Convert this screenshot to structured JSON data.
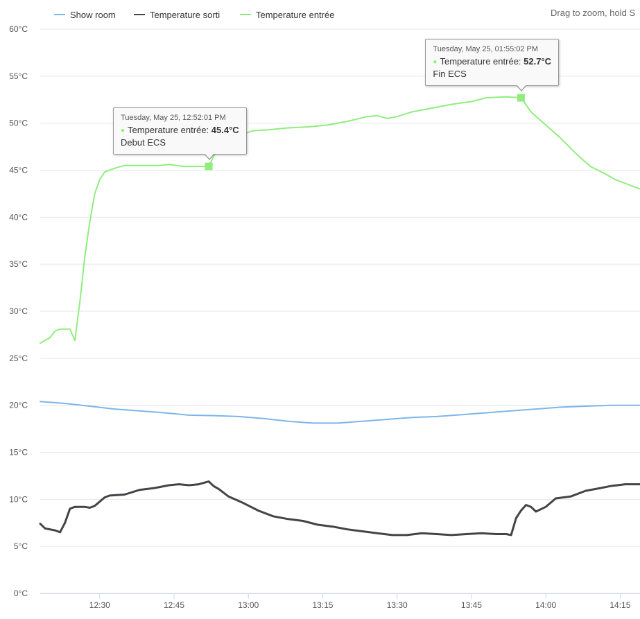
{
  "zoom_hint": "Drag to zoom, hold S",
  "chart_data": {
    "type": "line",
    "x_unit": "time",
    "xlim": [
      "12:18",
      "14:19"
    ],
    "ylim": [
      0,
      60
    ],
    "y_ticks": [
      "0°C",
      "5°C",
      "10°C",
      "15°C",
      "20°C",
      "25°C",
      "30°C",
      "35°C",
      "40°C",
      "45°C",
      "50°C",
      "55°C",
      "60°C"
    ],
    "x_ticks": [
      "12:30",
      "12:45",
      "13:00",
      "13:15",
      "13:30",
      "13:45",
      "14:00",
      "14:15"
    ],
    "grid": true,
    "legend_position": "top-left",
    "series": [
      {
        "name": "Show room",
        "color": "#7cb5ec",
        "points": [
          [
            "12:18",
            20.4
          ],
          [
            "12:23",
            20.2
          ],
          [
            "12:28",
            19.9
          ],
          [
            "12:33",
            19.6
          ],
          [
            "12:38",
            19.4
          ],
          [
            "12:43",
            19.2
          ],
          [
            "12:48",
            18.95
          ],
          [
            "12:53",
            18.9
          ],
          [
            "12:58",
            18.8
          ],
          [
            "13:03",
            18.6
          ],
          [
            "13:08",
            18.3
          ],
          [
            "13:13",
            18.1
          ],
          [
            "13:18",
            18.1
          ],
          [
            "13:23",
            18.3
          ],
          [
            "13:28",
            18.5
          ],
          [
            "13:33",
            18.7
          ],
          [
            "13:38",
            18.8
          ],
          [
            "13:43",
            19.0
          ],
          [
            "13:48",
            19.2
          ],
          [
            "13:53",
            19.4
          ],
          [
            "13:58",
            19.6
          ],
          [
            "14:03",
            19.8
          ],
          [
            "14:08",
            19.9
          ],
          [
            "14:13",
            20.0
          ],
          [
            "14:19",
            20.0
          ]
        ]
      },
      {
        "name": "Temperature sorti",
        "color": "#434348",
        "points": [
          [
            "12:18",
            7.4
          ],
          [
            "12:19",
            6.9
          ],
          [
            "12:21",
            6.7
          ],
          [
            "12:22",
            6.5
          ],
          [
            "12:23",
            7.5
          ],
          [
            "12:24",
            9.0
          ],
          [
            "12:25",
            9.2
          ],
          [
            "12:27",
            9.2
          ],
          [
            "12:28",
            9.1
          ],
          [
            "12:29",
            9.3
          ],
          [
            "12:31",
            10.2
          ],
          [
            "12:32",
            10.4
          ],
          [
            "12:35",
            10.5
          ],
          [
            "12:38",
            11.0
          ],
          [
            "12:41",
            11.2
          ],
          [
            "12:44",
            11.5
          ],
          [
            "12:46",
            11.6
          ],
          [
            "12:48",
            11.5
          ],
          [
            "12:50",
            11.6
          ],
          [
            "12:52",
            11.9
          ],
          [
            "12:53",
            11.4
          ],
          [
            "12:54",
            11.1
          ],
          [
            "12:56",
            10.3
          ],
          [
            "12:59",
            9.6
          ],
          [
            "13:02",
            8.8
          ],
          [
            "13:05",
            8.2
          ],
          [
            "13:08",
            7.9
          ],
          [
            "13:11",
            7.7
          ],
          [
            "13:14",
            7.3
          ],
          [
            "13:17",
            7.1
          ],
          [
            "13:20",
            6.8
          ],
          [
            "13:23",
            6.6
          ],
          [
            "13:26",
            6.4
          ],
          [
            "13:29",
            6.2
          ],
          [
            "13:32",
            6.2
          ],
          [
            "13:35",
            6.4
          ],
          [
            "13:38",
            6.3
          ],
          [
            "13:41",
            6.2
          ],
          [
            "13:44",
            6.3
          ],
          [
            "13:47",
            6.4
          ],
          [
            "13:50",
            6.3
          ],
          [
            "13:52",
            6.3
          ],
          [
            "13:53",
            6.2
          ],
          [
            "13:54",
            8.0
          ],
          [
            "13:55",
            8.8
          ],
          [
            "13:56",
            9.4
          ],
          [
            "13:57",
            9.2
          ],
          [
            "13:58",
            8.7
          ],
          [
            "14:00",
            9.2
          ],
          [
            "14:02",
            10.1
          ],
          [
            "14:05",
            10.3
          ],
          [
            "14:08",
            10.9
          ],
          [
            "14:11",
            11.2
          ],
          [
            "14:13",
            11.4
          ],
          [
            "14:16",
            11.6
          ],
          [
            "14:19",
            11.6
          ]
        ]
      },
      {
        "name": "Temperature entrée",
        "color": "#90ed7d",
        "points": [
          [
            "12:18",
            26.6
          ],
          [
            "12:20",
            27.2
          ],
          [
            "12:21",
            27.9
          ],
          [
            "12:22",
            28.1
          ],
          [
            "12:24",
            28.1
          ],
          [
            "12:25",
            26.9
          ],
          [
            "12:26",
            31.0
          ],
          [
            "12:27",
            35.8
          ],
          [
            "12:28",
            39.5
          ],
          [
            "12:29",
            42.5
          ],
          [
            "12:30",
            44.0
          ],
          [
            "12:31",
            44.8
          ],
          [
            "12:33",
            45.2
          ],
          [
            "12:35",
            45.5
          ],
          [
            "12:38",
            45.5
          ],
          [
            "12:42",
            45.5
          ],
          [
            "12:44",
            45.6
          ],
          [
            "12:47",
            45.4
          ],
          [
            "12:50",
            45.4
          ],
          [
            "12:52",
            45.4
          ],
          [
            "12:53",
            46.5
          ],
          [
            "12:55",
            47.9
          ],
          [
            "12:58",
            48.7
          ],
          [
            "13:01",
            49.2
          ],
          [
            "13:04",
            49.3
          ],
          [
            "13:08",
            49.5
          ],
          [
            "13:12",
            49.6
          ],
          [
            "13:16",
            49.8
          ],
          [
            "13:20",
            50.2
          ],
          [
            "13:24",
            50.7
          ],
          [
            "13:26",
            50.8
          ],
          [
            "13:28",
            50.5
          ],
          [
            "13:30",
            50.7
          ],
          [
            "13:33",
            51.2
          ],
          [
            "13:37",
            51.6
          ],
          [
            "13:41",
            52.0
          ],
          [
            "13:45",
            52.3
          ],
          [
            "13:48",
            52.7
          ],
          [
            "13:52",
            52.8
          ],
          [
            "13:55",
            52.7
          ],
          [
            "13:57",
            51.2
          ],
          [
            "14:00",
            49.8
          ],
          [
            "14:03",
            48.4
          ],
          [
            "14:06",
            46.8
          ],
          [
            "14:09",
            45.4
          ],
          [
            "14:12",
            44.6
          ],
          [
            "14:14",
            44.0
          ],
          [
            "14:16",
            43.6
          ],
          [
            "14:18",
            43.2
          ],
          [
            "14:19",
            43.0
          ]
        ]
      }
    ],
    "tooltips": [
      {
        "series": "Temperature entrée",
        "x": "12:52",
        "y": 45.4,
        "time_label": "Tuesday, May 25, 12:52:01 PM",
        "series_label": "Temperature entrée:",
        "value_label": "45.4°C",
        "note": "Debut ECS"
      },
      {
        "series": "Temperature entrée",
        "x": "13:55",
        "y": 52.7,
        "time_label": "Tuesday, May 25, 01:55:02 PM",
        "series_label": "Temperature entrée:",
        "value_label": "52.7°C",
        "note": "Fin ECS"
      }
    ]
  }
}
